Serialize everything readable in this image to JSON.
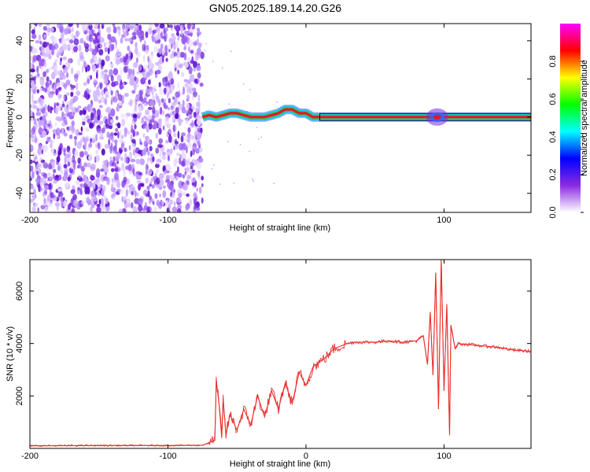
{
  "title": "GN05.2025.189.14.20.G26",
  "colors": {
    "snr_line": "#e8302e",
    "spectrogram_noise": "#7a2be0",
    "spectrogram_ridge": "#e8142e",
    "frame": "#000000"
  },
  "chart_data": [
    {
      "type": "heatmap",
      "xlabel": "Height of straight line (km)",
      "ylabel": "Frequency (Hz)",
      "xlim": [
        -200,
        163
      ],
      "ylim": [
        -50,
        49
      ],
      "x_ticks": [
        -200,
        -100,
        0,
        100
      ],
      "x_tick_labels": [
        "-200",
        "-100",
        "",
        "100"
      ],
      "y_ticks": [
        -40,
        -20,
        0,
        20,
        40
      ],
      "colorbar": {
        "label": "Normalized spectral amplitude",
        "range": [
          0,
          1
        ],
        "ticks": [
          0.0,
          0.2,
          0.4,
          0.6,
          0.8
        ],
        "tick_labels": [
          "0.0",
          "0.2",
          "0.4",
          "0.6",
          "0.8"
        ],
        "colormap": [
          "#ffffff",
          "#8a2be2",
          "#0000ff",
          "#00ffff",
          "#00ff00",
          "#ffff00",
          "#ff0000",
          "#ff00ff"
        ]
      },
      "noise_region": {
        "x_range": [
          -200,
          -75
        ],
        "y_range": [
          -50,
          49
        ]
      },
      "ridge_track": {
        "x": [
          -75,
          -70,
          -65,
          -60,
          -55,
          -50,
          -45,
          -40,
          -35,
          -30,
          -25,
          -20,
          -15,
          -10,
          -5,
          0,
          5,
          10,
          20,
          40,
          60,
          80,
          90,
          95,
          100,
          120,
          140,
          163
        ],
        "y": [
          0,
          1,
          0,
          1,
          2,
          2,
          1,
          0,
          0,
          0,
          1,
          2,
          4,
          4,
          2,
          2,
          0,
          0,
          0,
          0,
          0,
          0,
          0,
          0,
          0,
          0,
          0,
          0
        ]
      },
      "ridge_uniform_from_x": 10,
      "burst_at_x": 95
    },
    {
      "type": "line",
      "xlabel": "Height of straight line (km)",
      "ylabel": "SNR (10 * v/v)",
      "xlim": [
        -200,
        163
      ],
      "ylim": [
        0,
        7200
      ],
      "x_ticks": [
        -200,
        -100,
        0,
        100
      ],
      "x_tick_labels": [
        "-200",
        "-100",
        "0",
        "100"
      ],
      "y_ticks": [
        2000,
        4000,
        6000
      ],
      "series": [
        {
          "x": [
            -200,
            -150,
            -100,
            -75,
            -66,
            -65,
            -63,
            -61,
            -60,
            -58,
            -55,
            -50,
            -45,
            -40,
            -35,
            -30,
            -25,
            -20,
            -15,
            -10,
            -5,
            0,
            5,
            10,
            15,
            20,
            25,
            30,
            35,
            40,
            50,
            60,
            70,
            80,
            85,
            88,
            90,
            92,
            94,
            96,
            98,
            100,
            102,
            104,
            105,
            108,
            110,
            120,
            130,
            140,
            150,
            163
          ],
          "y": [
            100,
            110,
            110,
            120,
            300,
            2600,
            1700,
            400,
            1900,
            500,
            1300,
            700,
            1500,
            900,
            2000,
            1200,
            2200,
            1500,
            2500,
            1700,
            2900,
            2400,
            3100,
            3300,
            3500,
            3800,
            3900,
            4000,
            4050,
            4050,
            4050,
            4100,
            4050,
            4100,
            4300,
            3200,
            5200,
            2800,
            6700,
            1500,
            7200,
            2200,
            5500,
            500,
            4700,
            3800,
            4000,
            3950,
            3900,
            3850,
            3750,
            3700
          ]
        }
      ]
    }
  ]
}
